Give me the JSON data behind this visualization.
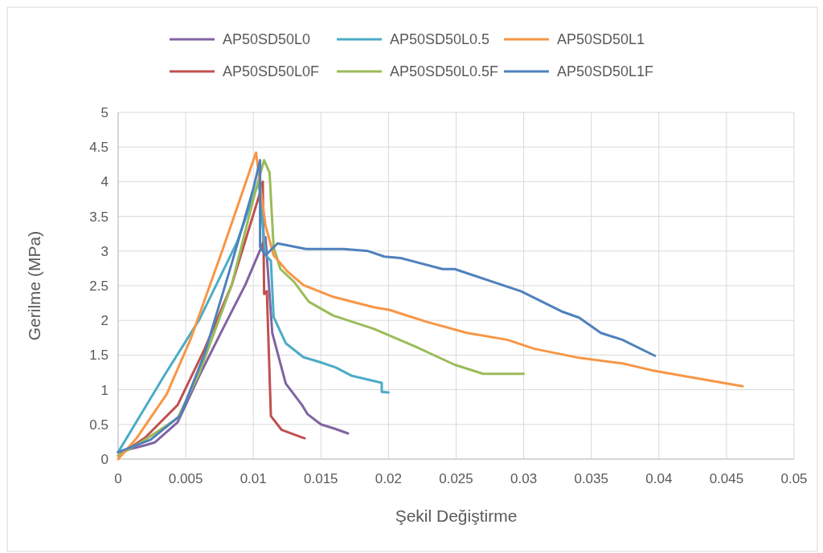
{
  "chart_data": {
    "type": "line",
    "xlabel": "Şekil Değiştirme",
    "ylabel": "Gerilme (MPa)",
    "xlim": [
      0,
      0.05
    ],
    "xticks": [
      0,
      0.005,
      0.01,
      0.015,
      0.02,
      0.025,
      0.03,
      0.035,
      0.04,
      0.045,
      0.05
    ],
    "ylim": [
      0,
      5
    ],
    "yticks": [
      0,
      0.5,
      1,
      1.5,
      2,
      2.5,
      3,
      3.5,
      4,
      4.5,
      5
    ],
    "grid": true,
    "legend": "top",
    "marker": "none",
    "line_style": "solid",
    "series": [
      {
        "name": "AP50SD50L0",
        "color": "#8064a2",
        "x": [
          0,
          0.002,
          0.0027,
          0.0044,
          0.006,
          0.0078,
          0.0094,
          0.0106,
          0.0109,
          0.0114,
          0.0124,
          0.0136,
          0.014,
          0.015,
          0.016,
          0.017
        ],
        "values": [
          0.1,
          0.2,
          0.24,
          0.53,
          1.2,
          1.9,
          2.51,
          3.06,
          3.2,
          1.82,
          1.09,
          0.78,
          0.65,
          0.5,
          0.44,
          0.37
        ]
      },
      {
        "name": "AP50SD50L0F",
        "color": "#c0504d",
        "x": [
          0,
          0.002,
          0.0044,
          0.0064,
          0.0084,
          0.0104,
          0.0107,
          0.0108,
          0.011,
          0.0113,
          0.0121,
          0.0135,
          0.0138
        ],
        "values": [
          0.05,
          0.31,
          0.78,
          1.59,
          2.51,
          3.78,
          4.0,
          2.38,
          2.42,
          0.62,
          0.42,
          0.32,
          0.3
        ]
      },
      {
        "name": "AP50SD50L0.5",
        "color": "#4bacc6",
        "x": [
          0,
          0.0034,
          0.006,
          0.0088,
          0.0104,
          0.0109,
          0.0113,
          0.0115,
          0.0124,
          0.0137,
          0.0149,
          0.0161,
          0.0173,
          0.0195,
          0.0195,
          0.02
        ],
        "values": [
          0.1,
          1.2,
          2.01,
          3.13,
          4.0,
          2.94,
          2.86,
          2.05,
          1.67,
          1.47,
          1.4,
          1.32,
          1.2,
          1.1,
          0.97,
          0.96
        ]
      },
      {
        "name": "AP50SD50L0.5F",
        "color": "#9bbb59",
        "x": [
          0,
          0.002,
          0.0044,
          0.006,
          0.0084,
          0.0102,
          0.0108,
          0.0112,
          0.0115,
          0.012,
          0.013,
          0.0141,
          0.0159,
          0.0189,
          0.0219,
          0.0249,
          0.027,
          0.03
        ],
        "values": [
          0.05,
          0.28,
          0.59,
          1.24,
          2.51,
          3.9,
          4.31,
          4.13,
          3.06,
          2.74,
          2.56,
          2.27,
          2.07,
          1.88,
          1.63,
          1.36,
          1.23,
          1.23
        ]
      },
      {
        "name": "AP50SD50L1",
        "color": "#f79646",
        "x": [
          0,
          0.0014,
          0.0036,
          0.0054,
          0.0078,
          0.0102,
          0.0109,
          0.0115,
          0.0125,
          0.0137,
          0.0159,
          0.0189,
          0.0201,
          0.0228,
          0.0258,
          0.0288,
          0.0308,
          0.0341,
          0.0373,
          0.0395,
          0.0427,
          0.0462
        ],
        "values": [
          0,
          0.31,
          0.94,
          1.75,
          3.06,
          4.42,
          3.37,
          2.94,
          2.71,
          2.51,
          2.34,
          2.19,
          2.15,
          1.98,
          1.82,
          1.72,
          1.59,
          1.46,
          1.38,
          1.28,
          1.17,
          1.05
        ]
      },
      {
        "name": "AP50SD50L1F",
        "color": "#4f81bd",
        "x": [
          0,
          0.0024,
          0.0046,
          0.0064,
          0.0084,
          0.01,
          0.0105,
          0.0105,
          0.0109,
          0.0118,
          0.0139,
          0.0167,
          0.0185,
          0.0197,
          0.0209,
          0.024,
          0.0249,
          0.0298,
          0.0328,
          0.0341,
          0.0357,
          0.0373,
          0.0397
        ],
        "values": [
          0.1,
          0.28,
          0.63,
          1.52,
          2.82,
          3.9,
          4.31,
          3.06,
          2.94,
          3.11,
          3.03,
          3.03,
          3.0,
          2.92,
          2.9,
          2.74,
          2.74,
          2.42,
          2.13,
          2.04,
          1.82,
          1.72,
          1.49
        ]
      }
    ]
  }
}
